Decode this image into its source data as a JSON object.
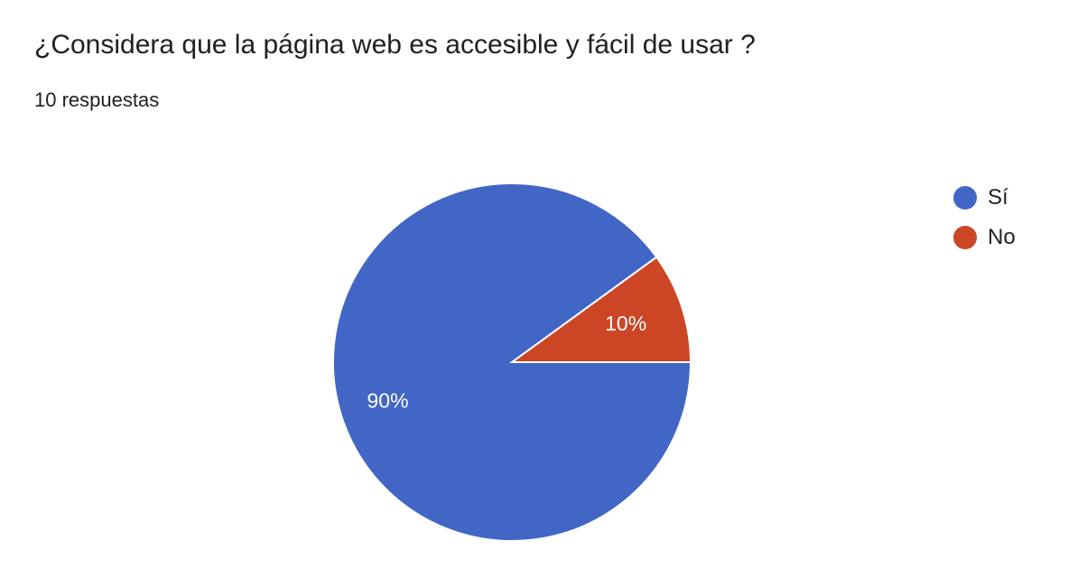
{
  "header": {
    "title": "¿Considera que la página web es accesible y fácil de usar ?",
    "response_count": "10 respuestas"
  },
  "chart_data": {
    "type": "pie",
    "title": "¿Considera que la página web es accesible y fácil de usar ?",
    "categories": [
      "Sí",
      "No"
    ],
    "values": [
      90,
      10
    ],
    "labels": [
      "90%",
      "10%"
    ],
    "colors": [
      "#4166c6",
      "#cc4626"
    ],
    "legend_position": "right"
  }
}
